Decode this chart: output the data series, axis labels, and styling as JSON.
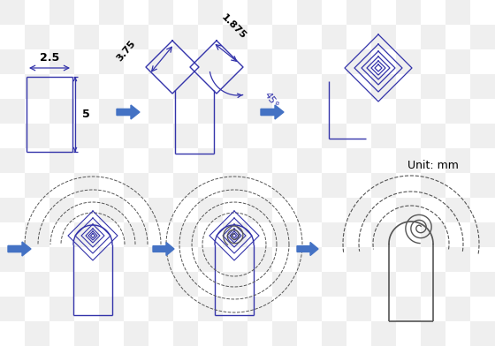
{
  "bg_color": "none",
  "blue": "#3333aa",
  "dim_color": "#000000",
  "arrow_fill": "#4472c4",
  "gray": "#555555",
  "unit_text": "Unit: mm",
  "dim_25": "2.5",
  "dim_5": "5",
  "dim_375": "3.75",
  "dim_1875": "1.875",
  "dim_45": "45°",
  "figw": 5.6,
  "figh": 3.92,
  "dpi": 100
}
